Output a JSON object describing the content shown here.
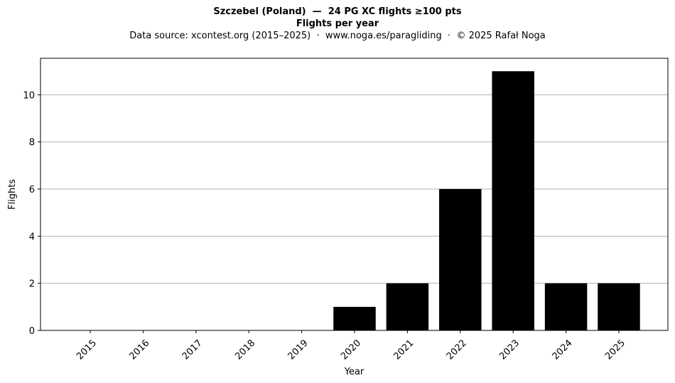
{
  "chart_data": {
    "type": "bar",
    "title": "Szczebel (Poland)  —  24 PG XC flights ≥100 pts",
    "subtitle_bold": "Flights per year",
    "subtitle": "Data source: xcontest.org (2015–2025)  ·  www.noga.es/paragliding  ·  © 2025 Rafał Noga",
    "xlabel": "Year",
    "ylabel": "Flights",
    "categories": [
      "2015",
      "2016",
      "2017",
      "2018",
      "2019",
      "2020",
      "2021",
      "2022",
      "2023",
      "2024",
      "2025"
    ],
    "values": [
      0,
      0,
      0,
      0,
      0,
      1,
      2,
      6,
      11,
      2,
      2
    ],
    "ylim": [
      0,
      11.55
    ],
    "yticks": [
      0,
      2,
      4,
      6,
      8,
      10
    ],
    "grid": "horizontal",
    "bar_color": "#000000",
    "grid_color": "#b0b0b0"
  }
}
